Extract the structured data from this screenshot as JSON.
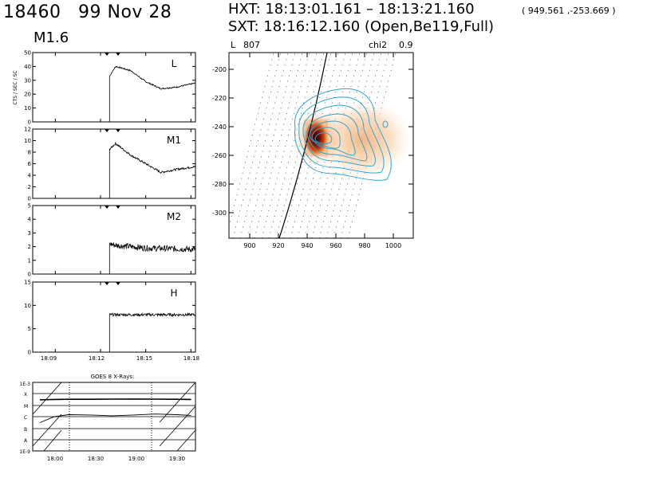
{
  "header": {
    "event_id": "18460",
    "date": "99 Nov 28",
    "hxt": "HXT: 18:13:01.161 – 18:13:21.160",
    "coords": "( 949.561 ,-253.669 )",
    "sxt": "SXT: 18:16:12.160 (Open,Be119,Full)",
    "goes_class": "M1.6"
  },
  "map": {
    "band_label": "L",
    "band_value": "807",
    "chi2_label": "chi2",
    "chi2_value": "0.9",
    "x_ticks": [
      "900",
      "920",
      "940",
      "960",
      "980",
      "1000"
    ],
    "y_ticks": [
      "-200",
      "-220",
      "-240",
      "-260",
      "-280",
      "-300"
    ]
  },
  "lightcurves": {
    "ylabel": "CTS / SEC / SC",
    "x_ticks": [
      "18:09",
      "18:12",
      "18:15",
      "18:18"
    ]
  },
  "goes": {
    "title": "GOES 8 X-Rays:",
    "y_top": "1E-3",
    "y_bottom": "1E-9",
    "classes": [
      "X",
      "M",
      "C",
      "B",
      "A"
    ],
    "x_ticks": [
      "18:00",
      "18:30",
      "19:00",
      "19:30"
    ]
  },
  "chart_data": [
    {
      "type": "line",
      "name": "L",
      "ylim": [
        0,
        50
      ],
      "yticks": [
        "0",
        "10",
        "20",
        "30",
        "40",
        "50"
      ],
      "x": [
        "18:07",
        "18:12.6",
        "18:13",
        "18:14",
        "18:15",
        "18:16",
        "18:17",
        "18:18.3"
      ],
      "values": [
        0,
        33,
        40,
        37,
        29,
        24,
        25,
        28
      ],
      "color": "#000000"
    },
    {
      "type": "line",
      "name": "M1",
      "ylim": [
        0,
        12
      ],
      "yticks": [
        "0",
        "2",
        "4",
        "6",
        "8",
        "10",
        "12"
      ],
      "x": [
        "18:07",
        "18:12.6",
        "18:13",
        "18:14",
        "18:15",
        "18:16",
        "18:17",
        "18:18.3"
      ],
      "values": [
        0,
        8.5,
        9.5,
        7.5,
        6.0,
        4.5,
        5.0,
        5.5
      ],
      "color": "#000000"
    },
    {
      "type": "line",
      "name": "M2",
      "ylim": [
        0,
        5
      ],
      "yticks": [
        "0",
        "1",
        "2",
        "3",
        "4",
        "5"
      ],
      "x": [
        "18:07",
        "18:12.6",
        "18:13",
        "18:15",
        "18:18.3"
      ],
      "values": [
        0,
        2.2,
        2.1,
        1.9,
        1.8
      ],
      "color": "#000000"
    },
    {
      "type": "line",
      "name": "H",
      "ylim": [
        0,
        15
      ],
      "yticks": [
        "0",
        "5",
        "10",
        "15"
      ],
      "x": [
        "18:07",
        "18:12.6",
        "18:13",
        "18:15",
        "18:18.3"
      ],
      "values": [
        0,
        8.0,
        8.0,
        8.0,
        8.0
      ],
      "color": "#000000"
    },
    {
      "type": "line",
      "title": "GOES 8 X-Rays:",
      "ylim": [
        "1E-9",
        "1E-3"
      ],
      "x": [
        "17:55",
        "18:05",
        "18:15",
        "18:30",
        "18:45",
        "19:00",
        "19:15",
        "19:30",
        "19:40"
      ],
      "series": [
        {
          "values": [
            3e-05,
            3.2e-05,
            3.3e-05,
            3.3e-05,
            3.4e-05,
            3.5e-05,
            3.4e-05,
            3.3e-05,
            3.2e-05
          ]
        },
        {
          "values": [
            3e-07,
            1e-06,
            1.5e-06,
            1.4e-06,
            1.2e-06,
            1.4e-06,
            1.7e-06,
            1.5e-06,
            1.3e-06
          ]
        }
      ]
    }
  ]
}
